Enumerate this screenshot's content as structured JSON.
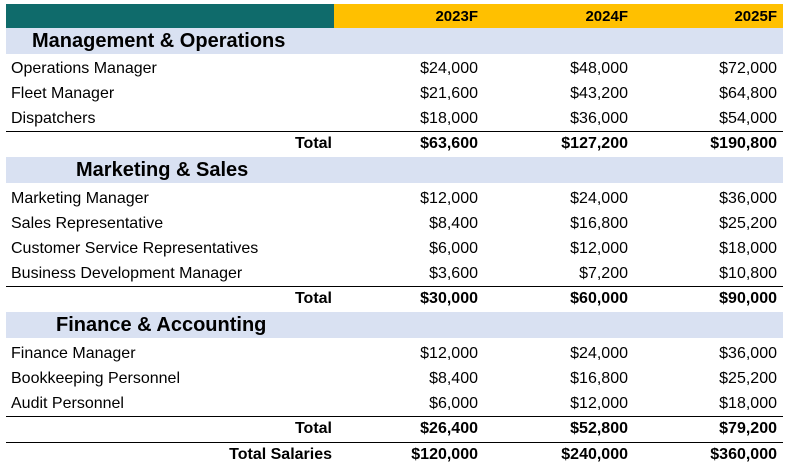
{
  "header": {
    "years": [
      "2023F",
      "2024F",
      "2025F"
    ]
  },
  "sections": [
    {
      "title": "Management & Operations",
      "rows": [
        {
          "label": "Operations Manager",
          "values": [
            "$24,000",
            "$48,000",
            "$72,000"
          ]
        },
        {
          "label": "Fleet Manager",
          "values": [
            "$21,600",
            "$43,200",
            "$64,800"
          ]
        },
        {
          "label": "Dispatchers",
          "values": [
            "$18,000",
            "$36,000",
            "$54,000"
          ]
        }
      ],
      "total": {
        "label": "Total",
        "values": [
          "$63,600",
          "$127,200",
          "$190,800"
        ]
      }
    },
    {
      "title": "Marketing & Sales",
      "rows": [
        {
          "label": "Marketing Manager",
          "values": [
            "$12,000",
            "$24,000",
            "$36,000"
          ]
        },
        {
          "label": "Sales Representative",
          "values": [
            "$8,400",
            "$16,800",
            "$25,200"
          ]
        },
        {
          "label": "Customer Service Representatives",
          "values": [
            "$6,000",
            "$12,000",
            "$18,000"
          ]
        },
        {
          "label": "Business Development Manager",
          "values": [
            "$3,600",
            "$7,200",
            "$10,800"
          ]
        }
      ],
      "total": {
        "label": "Total",
        "values": [
          "$30,000",
          "$60,000",
          "$90,000"
        ]
      }
    },
    {
      "title": "Finance & Accounting",
      "rows": [
        {
          "label": "Finance Manager",
          "values": [
            "$12,000",
            "$24,000",
            "$36,000"
          ]
        },
        {
          "label": "Bookkeeping Personnel",
          "values": [
            "$8,400",
            "$16,800",
            "$25,200"
          ]
        },
        {
          "label": "Audit Personnel",
          "values": [
            "$6,000",
            "$12,000",
            "$18,000"
          ]
        }
      ],
      "total": {
        "label": "Total",
        "values": [
          "$26,400",
          "$52,800",
          "$79,200"
        ]
      }
    }
  ],
  "grand_total": {
    "label": "Total Salaries",
    "values": [
      "$120,000",
      "$240,000",
      "$360,000"
    ]
  },
  "colors": {
    "header_bar": "#ffc000",
    "header_corner": "#0f6b6b",
    "section_fill": "#d9e1f2"
  }
}
